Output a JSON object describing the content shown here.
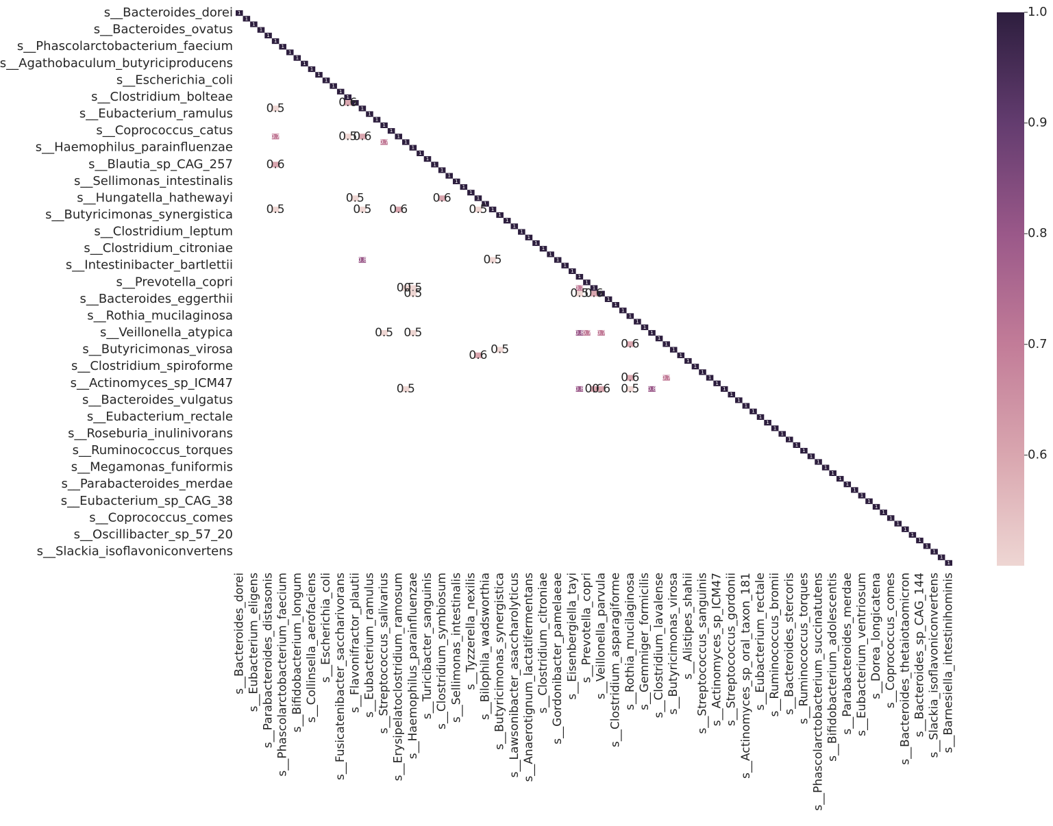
{
  "chart_data": {
    "type": "heatmap",
    "x_categories": [
      "s__Bacteroides_dorei",
      null,
      "s__Eubacterium_eligens",
      null,
      "s__Parabacteroides_distasonis",
      null,
      "s__Phascolarctobacterium_faecium",
      null,
      "s__Bifidobacterium_longum",
      null,
      "s__Collinsella_aerofaciens",
      null,
      "s__Escherichia_coli",
      null,
      "s__Fusicatenibacter_saccharivorans",
      null,
      "s__Flavonifractor_plautii",
      null,
      "s__Eubacterium_ramulus",
      null,
      "s__Streptococcus_salivarius",
      null,
      "s__Erysipelatoclostridium_ramosum",
      null,
      "s__Haemophilus_parainfluenzae",
      null,
      "s__Turicibacter_sanguinis",
      null,
      "s__Clostridium_symbiosum",
      null,
      "s__Sellimonas_intestinalis",
      null,
      "s__Tyzzerella_nexilis",
      null,
      "s__Bilophila_wadsworthia",
      null,
      "s__Butyricimonas_synergistica",
      null,
      "s__Lawsonibacter_asaccharolyticus",
      null,
      "s__Anaerotignum_lactatifermentans",
      null,
      "s__Clostridium_citroniae",
      null,
      "s__Gordonibacter_pamelaeae",
      null,
      "s__Eisenbergiella_tayi",
      null,
      "s__Prevotella_copri",
      null,
      "s__Veillonella_parvula",
      null,
      "s__Clostridium_asparagiforme",
      null,
      "s__Rothia_mucilaginosa",
      null,
      "s__Gemmiger_formicilis",
      null,
      "s__Clostridium_lavalense",
      null,
      "s__Butyricimonas_virosa",
      null,
      "s__Alistipes_shahii",
      null,
      "s__Streptococcus_sanguinis",
      null,
      "s__Actinomyces_sp_ICM47",
      null,
      "s__Streptococcus_gordonii",
      null,
      "s__Actinomyces_sp_oral_taxon_181",
      null,
      "s__Eubacterium_rectale",
      null,
      "s__Ruminococcus_bromii",
      null,
      "s__Bacteroides_stercoris",
      null,
      "s__Ruminococcus_torques",
      null,
      "s__Phascolarctobacterium_succinatutens",
      null,
      "s__Bifidobacterium_adolescentis",
      null,
      "s__Parabacteroides_merdae",
      null,
      "s__Eubacterium_ventriosum",
      null,
      "s__Dorea_longicatena",
      null,
      "s__Coprococcus_comes",
      null,
      "s__Bacteroides_thetaiotaomicron",
      null,
      "s__Bacteroides_sp_CAG_144",
      null,
      "s__Slackia_isoflavoniconvertens",
      null,
      "s__Barnesiella_intestinihominis"
    ],
    "y_categories": [
      "s__Bacteroides_dorei",
      null,
      null,
      "s__Bacteroides_ovatus",
      null,
      null,
      "s__Phascolarctobacterium_faecium",
      null,
      null,
      "s__Agathobaculum_butyriciproducens",
      null,
      null,
      "s__Escherichia_coli",
      null,
      null,
      "s__Clostridium_bolteae",
      null,
      null,
      "s__Eubacterium_ramulus",
      null,
      null,
      "s__Coprococcus_catus",
      null,
      null,
      "s__Haemophilus_parainfluenzae",
      null,
      null,
      "s__Blautia_sp_CAG_257",
      null,
      null,
      "s__Sellimonas_intestinalis",
      null,
      null,
      "s__Hungatella_hathewayi",
      null,
      null,
      "s__Butyricimonas_synergistica",
      null,
      null,
      "s__Clostridium_leptum",
      null,
      null,
      "s__Clostridium_citroniae",
      null,
      null,
      "s__Intestinibacter_bartlettii",
      null,
      null,
      "s__Prevotella_copri",
      null,
      null,
      "s__Bacteroides_eggerthii",
      null,
      null,
      "s__Rothia_mucilaginosa",
      null,
      null,
      "s__Veillonella_atypica",
      null,
      null,
      "s__Butyricimonas_virosa",
      null,
      null,
      "s__Clostridium_spiroforme",
      null,
      null,
      "s__Actinomyces_sp_ICM47",
      null,
      null,
      "s__Bacteroides_vulgatus",
      null,
      null,
      "s__Eubacterium_rectale",
      null,
      null,
      "s__Roseburia_inulinivorans",
      null,
      null,
      "s__Ruminococcus_torques",
      null,
      null,
      "s__Megamonas_funiformis",
      null,
      null,
      "s__Parabacteroides_merdae",
      null,
      null,
      "s__Eubacterium_sp_CAG_38",
      null,
      null,
      "s__Coprococcus_comes",
      null,
      null,
      "s__Oscillibacter_sp_57_20",
      null,
      null,
      "s__Slackia_isoflavoniconvertens",
      null,
      null
    ],
    "diagonal": [
      1,
      1,
      1,
      1,
      1,
      1,
      1,
      1,
      1,
      1,
      1,
      1,
      1,
      1,
      1,
      1,
      1,
      1,
      1,
      1,
      1,
      1,
      1,
      1,
      1,
      1,
      1,
      1,
      1,
      1,
      1,
      1,
      1,
      1,
      1,
      1,
      1,
      1,
      1,
      1,
      1,
      1,
      1,
      1,
      1,
      1,
      1,
      1,
      1,
      1,
      1,
      1,
      1,
      1,
      1,
      1,
      1,
      1,
      1,
      1,
      1,
      1,
      1,
      1,
      1,
      1,
      1,
      1,
      1,
      1,
      1,
      1,
      1,
      1,
      1,
      1,
      1,
      1,
      1,
      1,
      1,
      1,
      1,
      1,
      1,
      1,
      1,
      1,
      1,
      1,
      1,
      1,
      1,
      1,
      1,
      1,
      1,
      1,
      1
    ],
    "cells": [
      {
        "row": 16,
        "col": 15,
        "value": 0.6
      },
      {
        "row": 17,
        "col": 5,
        "value": 0.5
      },
      {
        "row": 22,
        "col": 5,
        "value": 0.7
      },
      {
        "row": 22,
        "col": 15,
        "value": 0.5
      },
      {
        "row": 22,
        "col": 17,
        "value": 0.6
      },
      {
        "row": 23,
        "col": 20,
        "value": 0.7
      },
      {
        "row": 27,
        "col": 5,
        "value": 0.6
      },
      {
        "row": 33,
        "col": 16,
        "value": 0.5
      },
      {
        "row": 33,
        "col": 28,
        "value": 0.6
      },
      {
        "row": 35,
        "col": 5,
        "value": 0.5
      },
      {
        "row": 35,
        "col": 17,
        "value": 0.5
      },
      {
        "row": 35,
        "col": 22,
        "value": 0.6
      },
      {
        "row": 35,
        "col": 33,
        "value": 0.5
      },
      {
        "row": 44,
        "col": 17,
        "value": 0.8
      },
      {
        "row": 44,
        "col": 35,
        "value": 0.5
      },
      {
        "row": 49,
        "col": 23,
        "value": 0.5
      },
      {
        "row": 49,
        "col": 24,
        "value": 0.5
      },
      {
        "row": 49,
        "col": 47,
        "value": 0.7
      },
      {
        "row": 50,
        "col": 24,
        "value": 0.5
      },
      {
        "row": 50,
        "col": 47,
        "value": 0.5
      },
      {
        "row": 50,
        "col": 49,
        "value": 0.6
      },
      {
        "row": 57,
        "col": 20,
        "value": 0.5
      },
      {
        "row": 57,
        "col": 24,
        "value": 0.5
      },
      {
        "row": 57,
        "col": 47,
        "value": 0.8
      },
      {
        "row": 57,
        "col": 48,
        "value": 0.7
      },
      {
        "row": 57,
        "col": 50,
        "value": 0.7
      },
      {
        "row": 59,
        "col": 54,
        "value": 0.6
      },
      {
        "row": 60,
        "col": 36,
        "value": 0.5
      },
      {
        "row": 61,
        "col": 33,
        "value": 0.6
      },
      {
        "row": 65,
        "col": 54,
        "value": 0.6
      },
      {
        "row": 65,
        "col": 59,
        "value": 0.7
      },
      {
        "row": 67,
        "col": 23,
        "value": 0.5
      },
      {
        "row": 67,
        "col": 47,
        "value": 0.8
      },
      {
        "row": 67,
        "col": 49,
        "value": 0.6
      },
      {
        "row": 67,
        "col": 50,
        "value": 0.6
      },
      {
        "row": 67,
        "col": 54,
        "value": 0.5
      },
      {
        "row": 67,
        "col": 57,
        "value": 0.8
      }
    ],
    "clim": [
      0.5,
      1
    ],
    "cticks": [
      0.6,
      0.7,
      0.8,
      0.9,
      {
        "value": 1,
        "label": "1.0"
      }
    ],
    "colormap": [
      "#eed6d3",
      "#d9a6af",
      "#c27c98",
      "#9a5889",
      "#633c6f",
      "#2d1e3e"
    ]
  }
}
